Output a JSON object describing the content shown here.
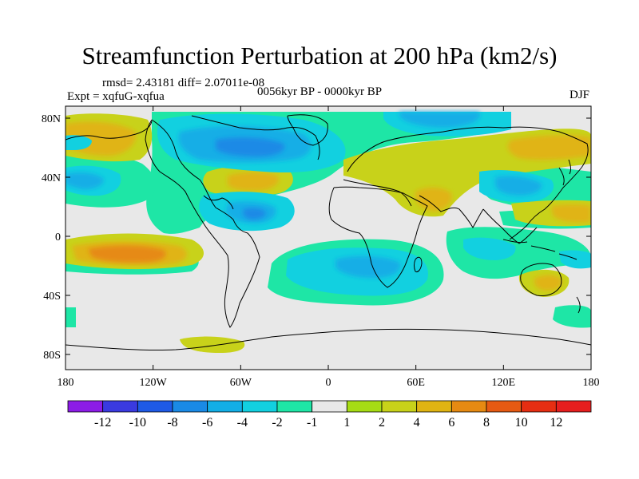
{
  "title": "Streamfunction Perturbation at 200 hPa (km2/s)",
  "stats_text": "rmsd= 2.43181 diff= 2.07011e-08",
  "experiment_text": "Expt = xqfuG-xqfua",
  "period_text": "0056kyr BP - 0000kyr BP",
  "season_text": "DJF",
  "lat_ticks": [
    "80N",
    "40N",
    "0",
    "40S",
    "80S"
  ],
  "lon_ticks": [
    "180",
    "120W",
    "60W",
    "0",
    "60E",
    "120E",
    "180"
  ],
  "colorbar": {
    "labels": [
      "-12",
      "-10",
      "-8",
      "-6",
      "-4",
      "-2",
      "-1",
      "1",
      "2",
      "4",
      "6",
      "8",
      "10",
      "12"
    ],
    "colors": [
      "#8c1ce6",
      "#3a3ae0",
      "#1e5ae6",
      "#1a8ae6",
      "#12aee6",
      "#12d0e0",
      "#1ee6a6",
      "#e8e8e8",
      "#a6dc14",
      "#c8d21a",
      "#e0b412",
      "#e68a12",
      "#e65a12",
      "#e62e12",
      "#e61e1e"
    ]
  },
  "colors": {
    "background": "#e8e8e8",
    "coast": "#000000"
  }
}
